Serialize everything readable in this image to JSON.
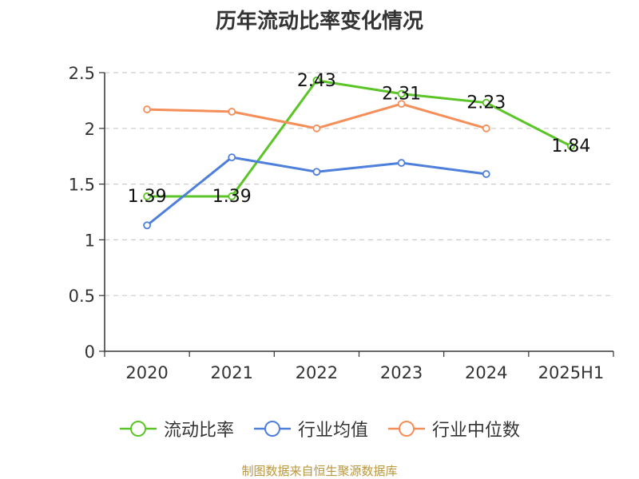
{
  "title": "历年流动比率变化情况",
  "footer": "制图数据来自恒生聚源数据库",
  "chart_data": {
    "type": "line",
    "title": "历年流动比率变化情况",
    "categories": [
      "2020",
      "2021",
      "2022",
      "2023",
      "2024",
      "2025H1"
    ],
    "ylim": [
      0,
      2.5
    ],
    "yticks": [
      0,
      0.5,
      1,
      1.5,
      2,
      2.5
    ],
    "grid": true,
    "legend_position": "bottom",
    "series": [
      {
        "name": "流动比率",
        "color": "#5bc427",
        "show_labels": true,
        "labels": [
          "1.39",
          "1.39",
          "2.43",
          "2.31",
          "2.23",
          "1.84"
        ],
        "values": [
          1.39,
          1.39,
          2.43,
          2.31,
          2.23,
          1.84
        ]
      },
      {
        "name": "行业均值",
        "color": "#4d7fdb",
        "show_labels": false,
        "values": [
          1.13,
          1.74,
          1.61,
          1.69,
          1.59,
          null
        ]
      },
      {
        "name": "行业中位数",
        "color": "#f68e59",
        "show_labels": false,
        "values": [
          2.17,
          2.15,
          2.0,
          2.22,
          2.0,
          null
        ]
      }
    ]
  }
}
